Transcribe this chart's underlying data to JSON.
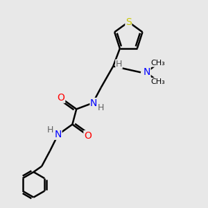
{
  "bg_color": "#e8e8e8",
  "atom_colors": {
    "C": "#000000",
    "N": "#0000ff",
    "O": "#ff0000",
    "S": "#c8c800",
    "H": "#606060"
  },
  "bond_color": "#000000",
  "bond_width": 1.8
}
